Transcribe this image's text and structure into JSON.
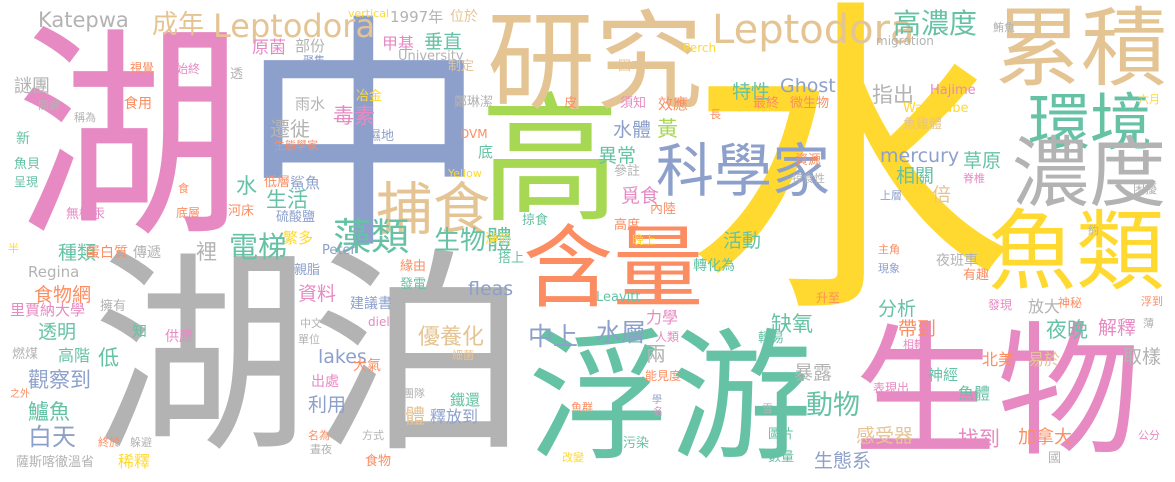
{
  "palette": {
    "teal": "#66c2a5",
    "orange": "#fc8d62",
    "blue": "#8da0cb",
    "pink": "#e78ac3",
    "green": "#a6d854",
    "yellow": "#ffd92f",
    "tan": "#e5c494",
    "grey": "#b3b3b3"
  },
  "words": [
    "水",
    "湖",
    "中",
    "湖泊",
    "高",
    "研究",
    "浮游",
    "生物",
    "含量",
    "累積",
    "環境",
    "濃度",
    "魚類",
    "科學家",
    "捕食",
    "Leptodora",
    "Leptodora",
    "成年",
    "Katepwa",
    "高濃度",
    "藻類",
    "電梯",
    "生物體",
    "動物",
    "中上",
    "水層",
    "白天",
    "觀察到",
    "鱸魚",
    "種類",
    "食物網",
    "透明",
    "謎團",
    "遷徙",
    "毒素",
    "資料",
    "lakes",
    "利用",
    "fleas",
    "優養化",
    "體",
    "釋放到",
    "鐵還",
    "甲基",
    "垂直",
    "原菌",
    "部份",
    "特性",
    "Ghost",
    "指出",
    "mercury",
    "相關",
    "倍",
    "草原",
    "水體",
    "黃",
    "異常",
    "覓食",
    "活動",
    "分析",
    "缺氧",
    "帶到",
    "夜晚",
    "解釋",
    "取樣",
    "暴露",
    "感受器",
    "找到",
    "加拿大",
    "生態系",
    "力學",
    "兩",
    "水",
    "生活",
    "裡",
    "低",
    "高階",
    "稀釋",
    "北美",
    "易於",
    "魚體",
    "神經",
    "放大",
    "夜班車",
    "轉化為",
    "繁多",
    "蛋白質",
    "傳遞",
    "里賈納大學",
    "擁有",
    "知",
    "供應",
    "燃煤",
    "薩斯喀徹溫省",
    "終於",
    "躲避",
    "之外",
    "Regina",
    "半",
    "食用",
    "稱為",
    "關鍵",
    "新",
    "魚貝",
    "呈現",
    "無機汞",
    "底層",
    "食",
    "視覺",
    "始終",
    "透",
    "低層",
    "鯊魚",
    "河床",
    "硫酸鹽",
    "雨水",
    "冶金",
    "濕地",
    "生態學家",
    "University",
    "聚集",
    "制定",
    "鄭琳潔",
    "DVM",
    "底",
    "Yellow",
    "Peter",
    "親脂",
    "緣由",
    "發電",
    "建議書",
    "鏈",
    "中文",
    "單位",
    "diel",
    "細菌",
    "大氣",
    "出處",
    "團隊",
    "名為",
    "晝夜",
    "方式",
    "食物",
    "漣漪",
    "搭上",
    "掠食",
    "皮",
    "固中",
    "須知",
    "參註",
    "效應",
    "長",
    "高度",
    "內陸",
    "晚上",
    "最終",
    "微生物",
    "Perch",
    "Hajime",
    "Watanabe",
    "魚雞體",
    "資源",
    "掠食性",
    "脊椎",
    "上層",
    "主角",
    "現象",
    "有趣",
    "發現",
    "神秘",
    "浮到",
    "薄",
    "困擾",
    "六月",
    "約",
    "升至",
    "相較",
    "表現出",
    "雪",
    "圖片",
    "數量",
    "國",
    "公分",
    "改變",
    "污染",
    "魚群",
    "學",
    "名",
    "Leavitt",
    "輕易",
    "能見度",
    "人類",
    "migration",
    "鮪魚",
    "vertical",
    "1997年",
    "位於"
  ]
}
